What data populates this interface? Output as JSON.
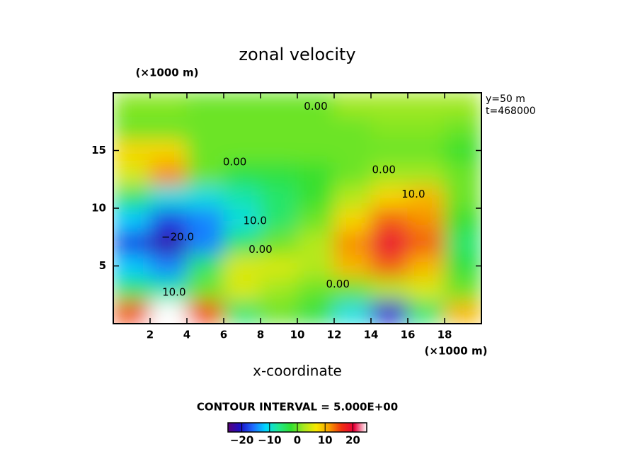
{
  "chart_data": {
    "type": "contour",
    "title": "zonal velocity",
    "y_unit_label": "(×1000 m)",
    "x_unit_label": "(×1000 m)",
    "xlabel": "x-coordinate",
    "info": [
      "y=50  m",
      "t=468000"
    ],
    "contour_interval_label": "CONTOUR INTERVAL = 5.000E+00",
    "xlim": [
      0,
      20
    ],
    "ylim": [
      0,
      20
    ],
    "xticks": [
      2,
      4,
      6,
      8,
      10,
      12,
      14,
      16,
      18
    ],
    "yticks": [
      5,
      10,
      15
    ],
    "x": [
      1,
      3,
      5,
      7,
      9,
      11,
      13,
      15,
      17,
      19
    ],
    "y": [
      1,
      3,
      5,
      7,
      9,
      11,
      13,
      15,
      17,
      19
    ],
    "z": [
      [
        15,
        25,
        15,
        -5,
        0,
        -3,
        -10,
        -20,
        -5,
        10
      ],
      [
        -5,
        -8,
        0,
        5,
        2,
        0,
        0,
        3,
        5,
        0
      ],
      [
        -12,
        -15,
        -5,
        5,
        5,
        3,
        10,
        14,
        10,
        -3
      ],
      [
        -18,
        -22,
        -15,
        -5,
        0,
        3,
        12,
        20,
        14,
        -5
      ],
      [
        -12,
        -18,
        -15,
        -10,
        -5,
        0,
        8,
        14,
        12,
        -2
      ],
      [
        -5,
        -10,
        -10,
        -8,
        -5,
        -2,
        3,
        8,
        10,
        0
      ],
      [
        5,
        12,
        0,
        -3,
        -3,
        -2,
        0,
        2,
        2,
        0
      ],
      [
        8,
        8,
        0,
        0,
        0,
        0,
        0,
        0,
        0,
        -2
      ],
      [
        0,
        0,
        0,
        0,
        0,
        0,
        0,
        1,
        1,
        0
      ],
      [
        1,
        1,
        0,
        0,
        0,
        0,
        2,
        2,
        2,
        2
      ]
    ],
    "clim": [
      -25,
      25
    ],
    "colormap": [
      "#5a007a",
      "#1a10c8",
      "#1e6cff",
      "#00d8ff",
      "#20e890",
      "#30e030",
      "#a8e820",
      "#f8e800",
      "#f8a000",
      "#f03010",
      "#e8003a",
      "#ffffff"
    ],
    "cticks": [
      {
        "value": -20,
        "label": "−20"
      },
      {
        "value": -10,
        "label": "−10"
      },
      0,
      10,
      20
    ],
    "contour_labels": [
      {
        "text": "0.00",
        "x": 11,
        "y": 18.8
      },
      {
        "text": "0.00",
        "x": 6.6,
        "y": 14
      },
      {
        "text": "0.00",
        "x": 14.7,
        "y": 13.3
      },
      {
        "text": "0.00",
        "x": 8,
        "y": 6.4
      },
      {
        "text": "0.00",
        "x": 12.2,
        "y": 3.4
      },
      {
        "text": "10.0",
        "x": 16.3,
        "y": 11.2
      },
      {
        "text": "10.0",
        "x": 7.7,
        "y": 8.9
      },
      {
        "text": "10.0",
        "x": 3.3,
        "y": 2.7
      },
      {
        "text": "−20.0",
        "x": 3.5,
        "y": 7.5
      }
    ]
  }
}
